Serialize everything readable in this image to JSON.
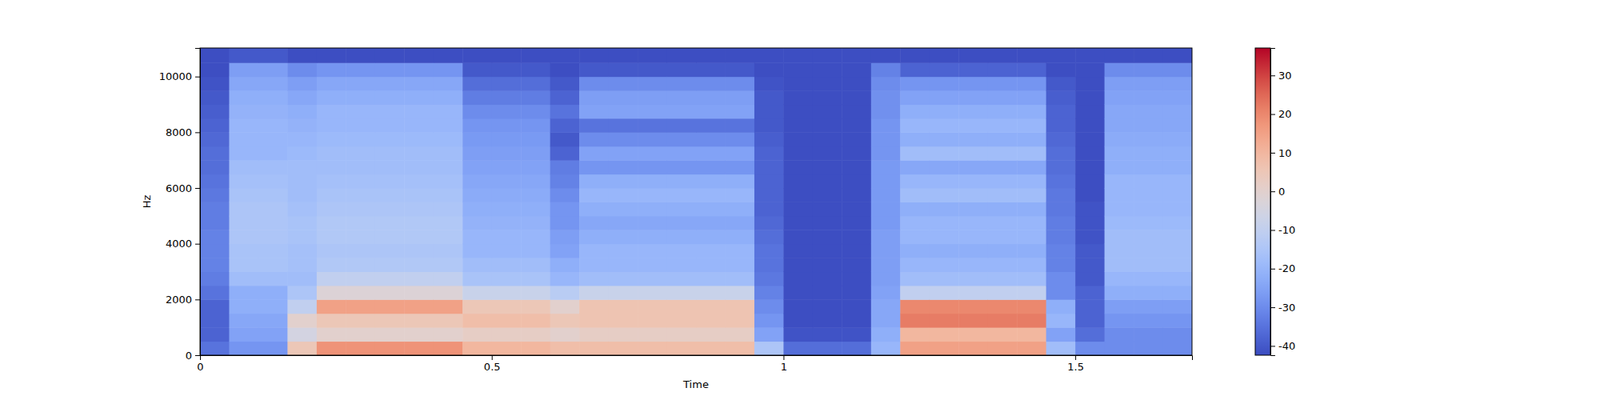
{
  "chart_data": {
    "type": "heatmap",
    "xlabel": "Time",
    "ylabel": "Hz",
    "xlim": [
      0,
      1.7
    ],
    "ylim": [
      0,
      11025
    ],
    "xticks": [
      0,
      0.5,
      1,
      1.5
    ],
    "yticks": [
      0,
      2000,
      4000,
      6000,
      8000,
      10000
    ],
    "time_bins": [
      0,
      0.05,
      0.1,
      0.15,
      0.2,
      0.25,
      0.3,
      0.35,
      0.4,
      0.45,
      0.5,
      0.55,
      0.6,
      0.65,
      0.7,
      0.75,
      0.8,
      0.85,
      0.9,
      0.95,
      1,
      1.05,
      1.1,
      1.15,
      1.2,
      1.25,
      1.3,
      1.35,
      1.4,
      1.45,
      1.5,
      1.55,
      1.6,
      1.65,
      1.7
    ],
    "freq_bins": [
      0,
      500,
      1000,
      1500,
      2000,
      2500,
      3000,
      3500,
      4000,
      4500,
      5000,
      5500,
      6000,
      6500,
      7000,
      7500,
      8000,
      8500,
      9000,
      9500,
      10000,
      10500,
      11025
    ],
    "colorbar_range": [
      -42.4,
      37.1
    ],
    "colorbar_ticks": [
      -40,
      -30,
      -20,
      -10,
      0,
      10,
      20,
      30
    ],
    "cells": [
      [
        -35,
        -38,
        -38,
        -38,
        -35,
        -33,
        -32,
        -32,
        -32,
        -33,
        -33,
        -34,
        -35,
        -36,
        -36,
        -37,
        -38,
        -39,
        -40,
        -41,
        -42,
        -42
      ],
      [
        -28,
        -25,
        -24,
        -22,
        -22,
        -18,
        -16,
        -16,
        -15,
        -15,
        -15,
        -16,
        -17,
        -18,
        -20,
        -20,
        -20,
        -21,
        -22,
        -24,
        -26,
        -40
      ],
      [
        -28,
        -25,
        -24,
        -22,
        -22,
        -18,
        -16,
        -16,
        -15,
        -15,
        -15,
        -16,
        -17,
        -18,
        -20,
        -20,
        -20,
        -21,
        -22,
        -24,
        -26,
        -40
      ],
      [
        5,
        -5,
        0,
        -10,
        -15,
        -18,
        -17,
        -17,
        -16,
        -16,
        -17,
        -18,
        -18,
        -18,
        -19,
        -20,
        -21,
        -22,
        -24,
        -26,
        -30,
        -42
      ],
      [
        18,
        0,
        5,
        15,
        -2,
        -10,
        -14,
        -15,
        -14,
        -14,
        -15,
        -16,
        -17,
        -18,
        -18,
        -19,
        -20,
        -20,
        -22,
        -24,
        -28,
        -42
      ],
      [
        18,
        0,
        5,
        15,
        -2,
        -10,
        -14,
        -15,
        -14,
        -14,
        -15,
        -16,
        -17,
        -18,
        -18,
        -19,
        -20,
        -20,
        -22,
        -24,
        -28,
        -42
      ],
      [
        18,
        0,
        5,
        15,
        -2,
        -10,
        -14,
        -15,
        -14,
        -14,
        -15,
        -16,
        -17,
        -18,
        -18,
        -19,
        -20,
        -20,
        -22,
        -24,
        -28,
        -42
      ],
      [
        18,
        0,
        5,
        15,
        -2,
        -10,
        -14,
        -15,
        -14,
        -14,
        -15,
        -16,
        -17,
        -18,
        -18,
        -19,
        -20,
        -20,
        -22,
        -24,
        -28,
        -42
      ],
      [
        18,
        0,
        5,
        15,
        -2,
        -10,
        -14,
        -15,
        -14,
        -14,
        -15,
        -16,
        -17,
        -18,
        -18,
        -19,
        -20,
        -20,
        -22,
        -24,
        -28,
        -42
      ],
      [
        10,
        2,
        8,
        5,
        -8,
        -16,
        -18,
        -20,
        -20,
        -21,
        -22,
        -23,
        -24,
        -25,
        -26,
        -27,
        -28,
        -30,
        -33,
        -36,
        -40,
        -42
      ],
      [
        10,
        2,
        8,
        5,
        -8,
        -16,
        -18,
        -20,
        -20,
        -21,
        -22,
        -23,
        -24,
        -25,
        -26,
        -27,
        -28,
        -30,
        -33,
        -36,
        -40,
        -42
      ],
      [
        10,
        2,
        8,
        5,
        -8,
        -16,
        -18,
        -20,
        -20,
        -21,
        -22,
        -23,
        -24,
        -25,
        -26,
        -27,
        -28,
        -30,
        -33,
        -36,
        -40,
        -42
      ],
      [
        8,
        0,
        5,
        0,
        -12,
        -20,
        -22,
        -25,
        -26,
        -28,
        -28,
        -30,
        -32,
        -33,
        -38,
        -40,
        -38,
        -35,
        -38,
        -40,
        -42,
        -42
      ],
      [
        8,
        2,
        6,
        6,
        -8,
        -18,
        -20,
        -20,
        -22,
        -24,
        -22,
        -20,
        -22,
        -28,
        -25,
        -30,
        -35,
        -25,
        -26,
        -30,
        -40,
        -42
      ],
      [
        8,
        2,
        6,
        6,
        -8,
        -18,
        -20,
        -20,
        -22,
        -24,
        -22,
        -20,
        -22,
        -28,
        -25,
        -30,
        -35,
        -25,
        -26,
        -30,
        -40,
        -42
      ],
      [
        8,
        2,
        6,
        6,
        -8,
        -18,
        -20,
        -20,
        -22,
        -24,
        -22,
        -20,
        -22,
        -28,
        -25,
        -30,
        -35,
        -25,
        -26,
        -30,
        -40,
        -42
      ],
      [
        8,
        2,
        6,
        6,
        -8,
        -18,
        -20,
        -20,
        -22,
        -24,
        -22,
        -20,
        -22,
        -28,
        -25,
        -30,
        -35,
        -25,
        -26,
        -30,
        -40,
        -42
      ],
      [
        8,
        2,
        6,
        6,
        -8,
        -18,
        -20,
        -20,
        -22,
        -24,
        -22,
        -20,
        -22,
        -28,
        -25,
        -30,
        -35,
        -25,
        -26,
        -30,
        -40,
        -42
      ],
      [
        8,
        2,
        6,
        6,
        -8,
        -18,
        -20,
        -20,
        -22,
        -24,
        -22,
        -20,
        -22,
        -28,
        -25,
        -30,
        -35,
        -25,
        -26,
        -30,
        -40,
        -42
      ],
      [
        -15,
        -25,
        -28,
        -30,
        -32,
        -34,
        -35,
        -35,
        -36,
        -37,
        -38,
        -38,
        -38,
        -38,
        -38,
        -39,
        -40,
        -40,
        -40,
        -41,
        -42,
        -42
      ],
      [
        -36,
        -41,
        -42,
        -42,
        -42,
        -42,
        -42,
        -42,
        -42,
        -42,
        -42,
        -42,
        -42,
        -42,
        -42,
        -42,
        -42,
        -42,
        -42,
        -42,
        -42,
        -42
      ],
      [
        -36,
        -41,
        -42,
        -42,
        -42,
        -42,
        -42,
        -42,
        -42,
        -42,
        -42,
        -42,
        -42,
        -42,
        -42,
        -42,
        -42,
        -42,
        -42,
        -42,
        -42,
        -42
      ],
      [
        -36,
        -41,
        -42,
        -42,
        -42,
        -42,
        -42,
        -42,
        -42,
        -42,
        -42,
        -42,
        -42,
        -42,
        -42,
        -42,
        -42,
        -42,
        -42,
        -42,
        -42,
        -42
      ],
      [
        -20,
        -22,
        -24,
        -24,
        -25,
        -26,
        -26,
        -26,
        -26,
        -27,
        -27,
        -27,
        -27,
        -27,
        -28,
        -28,
        -28,
        -29,
        -29,
        -30,
        -32,
        -42
      ],
      [
        15,
        10,
        22,
        20,
        -10,
        -18,
        -20,
        -22,
        -20,
        -20,
        -22,
        -18,
        -20,
        -24,
        -18,
        -22,
        -20,
        -22,
        -25,
        -28,
        -38,
        -42
      ],
      [
        15,
        10,
        22,
        20,
        -10,
        -18,
        -20,
        -22,
        -20,
        -20,
        -22,
        -18,
        -20,
        -24,
        -18,
        -22,
        -20,
        -22,
        -25,
        -28,
        -38,
        -42
      ],
      [
        15,
        10,
        22,
        20,
        -10,
        -18,
        -20,
        -22,
        -20,
        -20,
        -22,
        -18,
        -20,
        -24,
        -18,
        -22,
        -20,
        -22,
        -25,
        -28,
        -38,
        -42
      ],
      [
        15,
        10,
        22,
        20,
        -10,
        -18,
        -20,
        -22,
        -20,
        -20,
        -22,
        -18,
        -20,
        -24,
        -18,
        -22,
        -20,
        -22,
        -25,
        -28,
        -38,
        -42
      ],
      [
        15,
        10,
        22,
        20,
        -10,
        -18,
        -20,
        -22,
        -20,
        -20,
        -22,
        -18,
        -20,
        -24,
        -18,
        -22,
        -20,
        -22,
        -25,
        -28,
        -38,
        -42
      ],
      [
        -18,
        -25,
        -20,
        -22,
        -30,
        -30,
        -32,
        -32,
        -33,
        -33,
        -34,
        -34,
        -35,
        -36,
        -36,
        -37,
        -38,
        -38,
        -39,
        -40,
        -42,
        -42
      ],
      [
        -30,
        -36,
        -38,
        -38,
        -38,
        -40,
        -40,
        -40,
        -41,
        -41,
        -41,
        -42,
        -42,
        -42,
        -42,
        -42,
        -42,
        -42,
        -42,
        -42,
        -42,
        -42
      ],
      [
        -30,
        -30,
        -28,
        -26,
        -22,
        -20,
        -18,
        -18,
        -18,
        -19,
        -20,
        -20,
        -20,
        -22,
        -22,
        -23,
        -24,
        -24,
        -25,
        -26,
        -30,
        -42
      ],
      [
        -30,
        -30,
        -28,
        -26,
        -22,
        -20,
        -18,
        -18,
        -18,
        -19,
        -20,
        -20,
        -20,
        -22,
        -22,
        -23,
        -24,
        -24,
        -25,
        -26,
        -30,
        -42
      ],
      [
        -30,
        -30,
        -28,
        -26,
        -22,
        -20,
        -18,
        -18,
        -18,
        -19,
        -20,
        -20,
        -20,
        -22,
        -22,
        -23,
        -24,
        -24,
        -25,
        -26,
        -30,
        -42
      ]
    ]
  }
}
